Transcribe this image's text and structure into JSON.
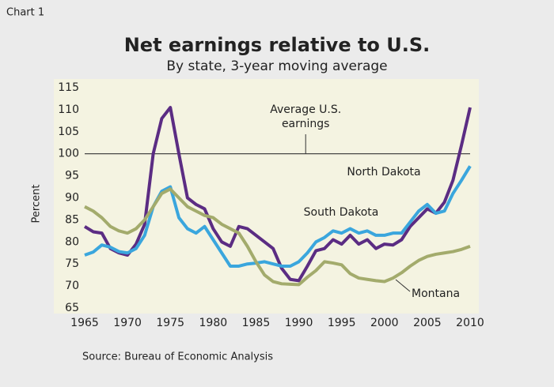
{
  "chart_data": {
    "type": "line",
    "label": "Chart 1",
    "title": "Net earnings relative to U.S.",
    "subtitle": "By state, 3-year moving average",
    "ylabel": "Percent",
    "source": "Source: Bureau of Economic Analysis",
    "annotation": [
      "Average U.S.",
      "earnings"
    ],
    "reference_line": 100,
    "x": [
      1965,
      1966,
      1967,
      1968,
      1969,
      1970,
      1971,
      1972,
      1973,
      1974,
      1975,
      1976,
      1977,
      1978,
      1979,
      1980,
      1981,
      1982,
      1983,
      1984,
      1985,
      1986,
      1987,
      1988,
      1989,
      1990,
      1991,
      1992,
      1993,
      1994,
      1995,
      1996,
      1997,
      1998,
      1999,
      2000,
      2001,
      2002,
      2003,
      2004,
      2005,
      2006,
      2007,
      2008,
      2009,
      2010
    ],
    "series": [
      {
        "name": "North Dakota",
        "color": "#5b2c83",
        "values": [
          83.5,
          82.3,
          82,
          78.5,
          77.5,
          77,
          79.5,
          84,
          100,
          108,
          110.5,
          100,
          90,
          88.5,
          87.5,
          83,
          80,
          79,
          83.5,
          83,
          81.5,
          80,
          78.5,
          74,
          71.5,
          71.2,
          74.5,
          78,
          78.5,
          80.5,
          79.5,
          81.5,
          79.5,
          80.5,
          78.5,
          79.5,
          79.3,
          80.5,
          83.5,
          85.5,
          87.5,
          86.5,
          89,
          94,
          102,
          110.5
        ]
      },
      {
        "name": "South Dakota",
        "color": "#3aa6dd",
        "values": [
          77,
          77.7,
          79.3,
          78.8,
          77.8,
          77.5,
          78.5,
          81.5,
          88,
          91.5,
          92.5,
          85.5,
          83,
          82,
          83.5,
          80.5,
          77.5,
          74.5,
          74.5,
          75,
          75.2,
          75.5,
          75,
          74.5,
          74.5,
          75.5,
          77.5,
          80,
          81,
          82.5,
          82,
          83,
          82,
          82.5,
          81.5,
          81.5,
          82,
          82,
          84.5,
          87,
          88.5,
          86.5,
          87,
          91,
          94,
          97.2
        ]
      },
      {
        "name": "Montana",
        "color": "#a3ab6c",
        "values": [
          88,
          87,
          85.5,
          83.5,
          82.5,
          82,
          83,
          85,
          88,
          91,
          92,
          90,
          88,
          87,
          86,
          85.5,
          84,
          83,
          82,
          79,
          75.5,
          72.5,
          71,
          70.5,
          70.4,
          70.3,
          72,
          73.5,
          75.5,
          75.2,
          74.8,
          72.8,
          71.8,
          71.5,
          71.2,
          71,
          71.8,
          73,
          74.5,
          75.8,
          76.7,
          77.2,
          77.5,
          77.8,
          78.3,
          79
        ]
      }
    ],
    "xlim": [
      1965,
      2010
    ],
    "xticks": [
      1965,
      1970,
      1975,
      1980,
      1985,
      1990,
      1995,
      2000,
      2005,
      2010
    ],
    "ylim": [
      65,
      115
    ],
    "yticks": [
      65,
      70,
      75,
      80,
      85,
      90,
      95,
      100,
      105,
      110,
      115
    ]
  }
}
